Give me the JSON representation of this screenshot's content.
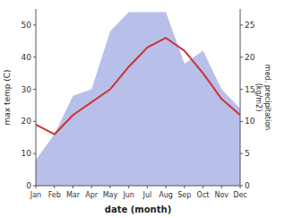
{
  "chart_data": {
    "type": "line",
    "xlabel": "date (month)",
    "ylabel": "max temp (C)",
    "y2label": "med. precipitation\n(kg/m2)",
    "categories": [
      "Jan",
      "Feb",
      "Mar",
      "Apr",
      "May",
      "Jun",
      "Jul",
      "Aug",
      "Sep",
      "Oct",
      "Nov",
      "Dec"
    ],
    "series": [
      {
        "type": "area",
        "axis": "y2",
        "color": "#b8bfe8",
        "values": [
          4,
          8,
          14,
          15,
          24,
          27,
          27,
          27,
          19,
          21,
          15,
          12
        ]
      },
      {
        "type": "line",
        "color": "#cc3333",
        "values": [
          19,
          16,
          22,
          26,
          30,
          37,
          43,
          46,
          42,
          35,
          27,
          22
        ]
      }
    ],
    "ylim": [
      0,
      55
    ],
    "yticks": [
      0,
      10,
      20,
      30,
      40,
      50
    ],
    "y2lim": [
      0,
      27.5
    ],
    "y2ticks": [
      0,
      5,
      10,
      15,
      20,
      25
    ],
    "grid": false
  }
}
